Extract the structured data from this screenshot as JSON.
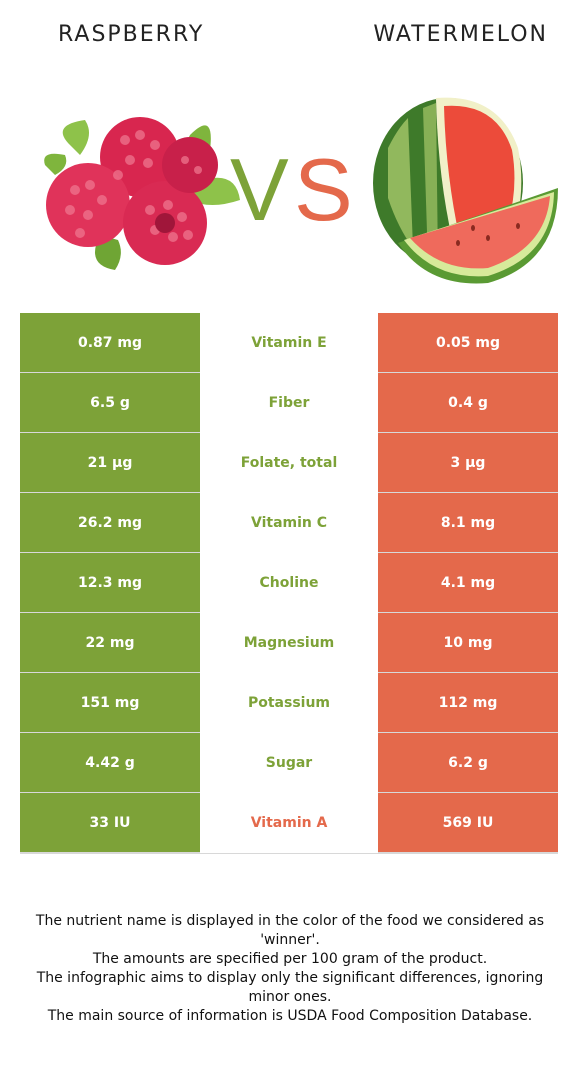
{
  "header": {
    "left_name": "RASPBERRY",
    "right_name": "WATERMELON",
    "vs_left": "V",
    "vs_right": "S"
  },
  "colors": {
    "left_accent": "#7da238",
    "right_accent": "#e4694b"
  },
  "rows": [
    {
      "nutrient": "Vitamin E",
      "left": "0.87 mg",
      "right": "0.05 mg",
      "winner": "left"
    },
    {
      "nutrient": "Fiber",
      "left": "6.5 g",
      "right": "0.4 g",
      "winner": "left"
    },
    {
      "nutrient": "Folate, total",
      "left": "21 µg",
      "right": "3 µg",
      "winner": "left"
    },
    {
      "nutrient": "Vitamin C",
      "left": "26.2 mg",
      "right": "8.1 mg",
      "winner": "left"
    },
    {
      "nutrient": "Choline",
      "left": "12.3 mg",
      "right": "4.1 mg",
      "winner": "left"
    },
    {
      "nutrient": "Magnesium",
      "left": "22 mg",
      "right": "10 mg",
      "winner": "left"
    },
    {
      "nutrient": "Potassium",
      "left": "151 mg",
      "right": "112 mg",
      "winner": "left"
    },
    {
      "nutrient": "Sugar",
      "left": "4.42 g",
      "right": "6.2 g",
      "winner": "left"
    },
    {
      "nutrient": "Vitamin A",
      "left": "33 IU",
      "right": "569 IU",
      "winner": "right"
    }
  ],
  "footer": {
    "line1": "The nutrient name is displayed in the color of the food we considered as 'winner'.",
    "line2": "The amounts are specified per 100 gram of the product.",
    "line3": "The infographic aims to display only the significant differences, ignoring minor ones.",
    "line4": "The main source of information is USDA Food Composition Database."
  }
}
